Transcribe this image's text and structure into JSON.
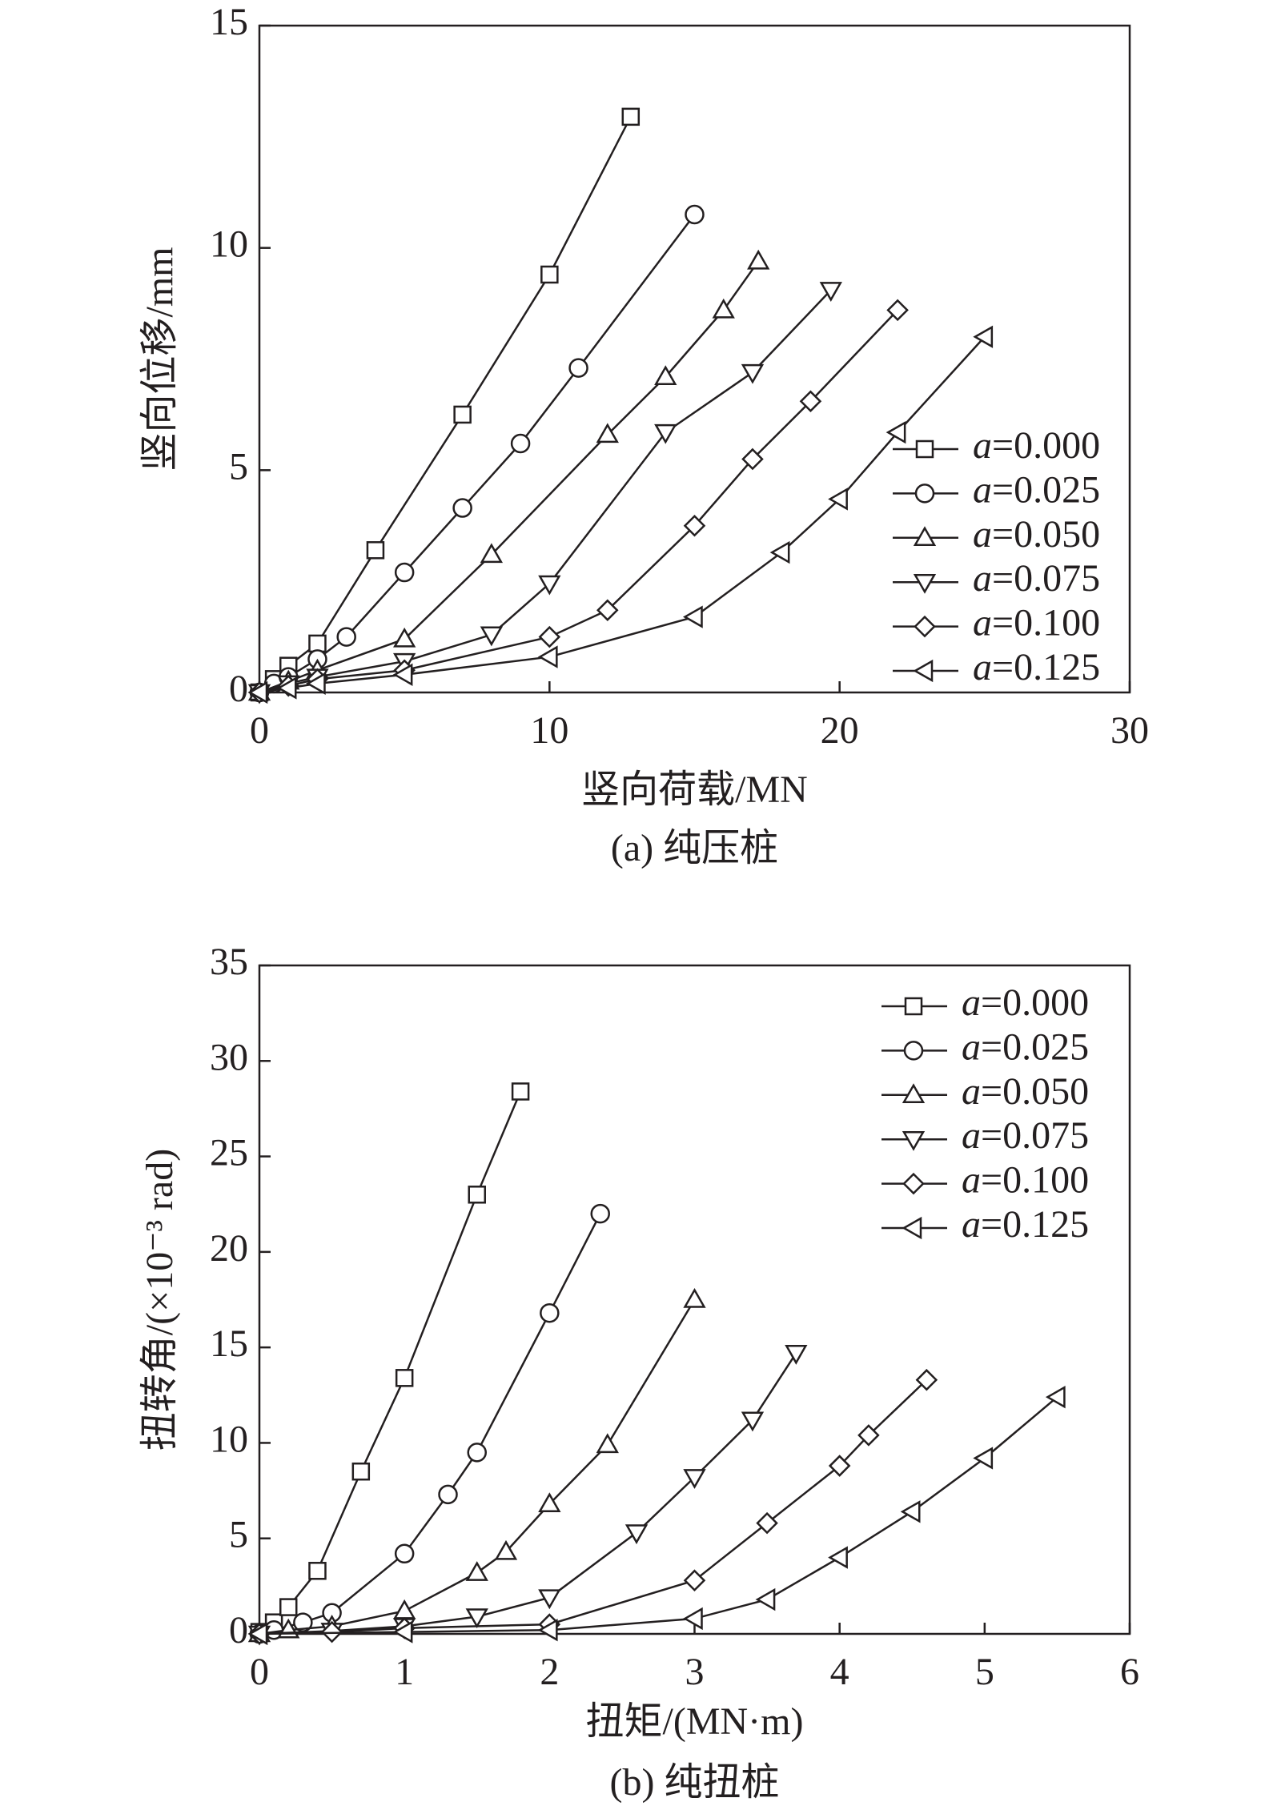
{
  "chart_data": [
    {
      "type": "line",
      "caption": "(a) 纯压桩",
      "x_label": "竖向荷载/MN",
      "y_label": "竖向位移/mm",
      "xlim": [
        0,
        30
      ],
      "xticks": [
        0,
        10,
        20,
        30
      ],
      "ylim": [
        0,
        15
      ],
      "yticks": [
        0,
        5,
        10,
        15
      ],
      "legend": "right",
      "color": "#231f20",
      "series": [
        {
          "name": "a=0.000",
          "marker": "square",
          "x": [
            0,
            0.5,
            1,
            2,
            4,
            7,
            10,
            12.8
          ],
          "values": [
            0,
            0.3,
            0.6,
            1.1,
            3.2,
            6.25,
            9.4,
            12.95
          ]
        },
        {
          "name": "a=0.025",
          "marker": "circle",
          "x": [
            0,
            0.5,
            1,
            2,
            3,
            5,
            7,
            9,
            11,
            15
          ],
          "values": [
            0,
            0.2,
            0.35,
            0.75,
            1.25,
            2.7,
            4.15,
            5.6,
            7.3,
            10.75
          ]
        },
        {
          "name": "a=0.050",
          "marker": "triangle-up",
          "x": [
            0,
            1,
            2,
            5,
            8,
            12,
            14,
            16,
            17.2
          ],
          "values": [
            0,
            0.25,
            0.5,
            1.2,
            3.1,
            5.8,
            7.1,
            8.6,
            9.7
          ]
        },
        {
          "name": "a=0.075",
          "marker": "triangle-down",
          "x": [
            0,
            1,
            2,
            5,
            8,
            10,
            14,
            17,
            19.7
          ],
          "values": [
            0,
            0.2,
            0.35,
            0.7,
            1.3,
            2.45,
            5.85,
            7.2,
            9.05
          ]
        },
        {
          "name": "a=0.100",
          "marker": "diamond",
          "x": [
            0,
            1,
            2,
            5,
            10,
            12,
            15,
            17,
            19,
            22
          ],
          "values": [
            0,
            0.15,
            0.3,
            0.5,
            1.25,
            1.85,
            3.75,
            5.25,
            6.55,
            8.6
          ]
        },
        {
          "name": "a=0.125",
          "marker": "triangle-left",
          "x": [
            0,
            1,
            2,
            5,
            10,
            15,
            18,
            20,
            22,
            25
          ],
          "values": [
            0,
            0.1,
            0.2,
            0.4,
            0.8,
            1.7,
            3.15,
            4.35,
            5.85,
            8.0
          ]
        }
      ]
    },
    {
      "type": "line",
      "caption": "(b) 纯扭桩",
      "x_label": "扭矩/(MN·m)",
      "y_label": "扭转角/(×10⁻³ rad)",
      "xlim": [
        0,
        6
      ],
      "xticks": [
        0,
        1,
        2,
        3,
        4,
        5,
        6
      ],
      "ylim": [
        0,
        35
      ],
      "yticks": [
        0,
        5,
        10,
        15,
        20,
        25,
        30,
        35
      ],
      "legend": "upper right",
      "color": "#231f20",
      "series": [
        {
          "name": "a=0.000",
          "marker": "square",
          "x": [
            0,
            0.1,
            0.2,
            0.4,
            0.7,
            1,
            1.5,
            1.8
          ],
          "values": [
            0.1,
            0.6,
            1.4,
            3.3,
            8.5,
            13.4,
            23,
            28.4
          ]
        },
        {
          "name": "a=0.025",
          "marker": "circle",
          "x": [
            0,
            0.1,
            0.3,
            0.5,
            1,
            1.3,
            1.5,
            2,
            2.35
          ],
          "values": [
            0,
            0.2,
            0.6,
            1.1,
            4.2,
            7.3,
            9.5,
            16.8,
            22
          ]
        },
        {
          "name": "a=0.050",
          "marker": "triangle-up",
          "x": [
            0,
            0.2,
            0.5,
            1,
            1.5,
            1.7,
            2,
            2.4,
            3
          ],
          "values": [
            0,
            0.2,
            0.4,
            1.2,
            3.2,
            4.3,
            6.8,
            9.9,
            17.5
          ]
        },
        {
          "name": "a=0.075",
          "marker": "triangle-down",
          "x": [
            0,
            0.5,
            1,
            1.5,
            2,
            2.6,
            3,
            3.4,
            3.7
          ],
          "values": [
            0,
            0.15,
            0.4,
            0.9,
            1.9,
            5.3,
            8.2,
            11.2,
            14.7
          ]
        },
        {
          "name": "a=0.100",
          "marker": "diamond",
          "x": [
            0,
            0.5,
            1,
            2,
            3,
            3.5,
            4,
            4.2,
            4.6
          ],
          "values": [
            0,
            0.1,
            0.3,
            0.5,
            2.8,
            5.8,
            8.8,
            10.4,
            13.3
          ]
        },
        {
          "name": "a=0.125",
          "marker": "triangle-left",
          "x": [
            0,
            1,
            2,
            3,
            3.5,
            4,
            4.5,
            5,
            5.5
          ],
          "values": [
            0,
            0.1,
            0.2,
            0.8,
            1.8,
            4.0,
            6.4,
            9.2,
            12.4
          ]
        }
      ]
    }
  ]
}
